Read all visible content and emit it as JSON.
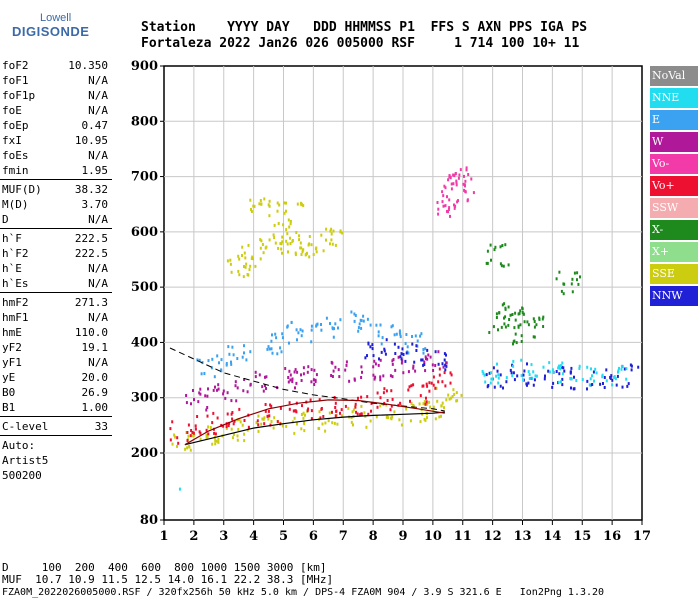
{
  "logo": {
    "brand": "Lowell",
    "product": "DIGISONDE"
  },
  "header": {
    "line1": "Station    YYYY DAY   DDD HHMMSS P1  FFS S AXN PPS IGA PS",
    "line2": "Fortaleza 2022 Jan26 026 005000 RSF     1 714 100 10+ 11"
  },
  "params": [
    [
      {
        "label": "foF2",
        "value": "10.350"
      },
      {
        "label": "foF1",
        "value": "N/A"
      },
      {
        "label": "foF1p",
        "value": "N/A"
      },
      {
        "label": "foE",
        "value": "N/A"
      },
      {
        "label": "foEp",
        "value": "0.47"
      },
      {
        "label": "fxI",
        "value": "10.95"
      },
      {
        "label": "foEs",
        "value": "N/A"
      },
      {
        "label": "fmin",
        "value": "1.95"
      }
    ],
    [
      {
        "label": "MUF(D)",
        "value": "38.32"
      },
      {
        "label": "M(D)",
        "value": "3.70"
      },
      {
        "label": "D",
        "value": "N/A"
      }
    ],
    [
      {
        "label": "h`F",
        "value": "222.5"
      },
      {
        "label": "h`F2",
        "value": "222.5"
      },
      {
        "label": "h`E",
        "value": "N/A"
      },
      {
        "label": "h`Es",
        "value": "N/A"
      }
    ],
    [
      {
        "label": "hmF2",
        "value": "271.3"
      },
      {
        "label": "hmF1",
        "value": "N/A"
      },
      {
        "label": "hmE",
        "value": "110.0"
      },
      {
        "label": "yF2",
        "value": "19.1"
      },
      {
        "label": "yF1",
        "value": "N/A"
      },
      {
        "label": "yE",
        "value": "20.0"
      },
      {
        "label": "B0",
        "value": "26.9"
      },
      {
        "label": "B1",
        "value": "1.00"
      }
    ],
    [
      {
        "label": "C-level",
        "value": "33"
      }
    ]
  ],
  "autoscaling": {
    "line1": "Auto:",
    "line2": "Artist5",
    "line3": "500200"
  },
  "legend": [
    {
      "label": "NoVal",
      "color": "#8c8c8c"
    },
    {
      "label": "NNE",
      "color": "#22ddf0"
    },
    {
      "label": "E",
      "color": "#3aa2f0"
    },
    {
      "label": "W",
      "color": "#b0189a"
    },
    {
      "label": "Vo-",
      "color": "#f23aa8"
    },
    {
      "label": "Vo+",
      "color": "#ee1030"
    },
    {
      "label": "SSW",
      "color": "#f4acb0"
    },
    {
      "label": "X-",
      "color": "#1e8a1e"
    },
    {
      "label": "X+",
      "color": "#8ede8e"
    },
    {
      "label": "SSE",
      "color": "#cccc10"
    },
    {
      "label": "NNW",
      "color": "#2020d6"
    }
  ],
  "chart_data": {
    "type": "scatter",
    "title": "",
    "xlabel": "",
    "ylabel": "",
    "xlim": [
      1,
      17
    ],
    "ylim": [
      80,
      900
    ],
    "x_ticks": [
      1,
      2,
      3,
      4,
      5,
      6,
      7,
      8,
      9,
      10,
      11,
      12,
      13,
      14,
      15,
      16,
      17
    ],
    "y_ticks": [
      80,
      200,
      300,
      400,
      500,
      600,
      700,
      800,
      900
    ],
    "grid": true,
    "bands": [
      {
        "name": "SSE",
        "color": "#cccc10",
        "points": [
          [
            1.6,
            220
          ],
          [
            2.5,
            235
          ],
          [
            3.5,
            245
          ],
          [
            4.5,
            252
          ],
          [
            5.5,
            258
          ],
          [
            6.5,
            262
          ],
          [
            7.5,
            268
          ],
          [
            8.5,
            272
          ],
          [
            9.5,
            276
          ],
          [
            10,
            280
          ],
          [
            10.5,
            300
          ]
        ]
      },
      {
        "name": "Vo+",
        "color": "#ee1030",
        "points": [
          [
            1.6,
            240
          ],
          [
            2.5,
            255
          ],
          [
            3.5,
            265
          ],
          [
            4.5,
            272
          ],
          [
            5.5,
            280
          ],
          [
            6.5,
            286
          ],
          [
            7.5,
            292
          ],
          [
            8.5,
            300
          ],
          [
            9.5,
            310
          ],
          [
            10.2,
            335
          ]
        ]
      },
      {
        "name": "W",
        "color": "#b0189a",
        "points": [
          [
            2,
            300
          ],
          [
            3,
            315
          ],
          [
            4,
            330
          ],
          [
            5,
            340
          ],
          [
            6,
            345
          ],
          [
            7,
            350
          ],
          [
            8,
            355
          ],
          [
            9,
            360
          ],
          [
            10,
            370
          ]
        ]
      },
      {
        "name": "E",
        "color": "#3aa2f0",
        "points": [
          [
            2.5,
            360
          ],
          [
            3.5,
            380
          ],
          [
            4.5,
            400
          ],
          [
            5.5,
            420
          ],
          [
            6.5,
            430
          ],
          [
            7.5,
            440
          ],
          [
            8.5,
            420
          ],
          [
            9.5,
            400
          ]
        ]
      },
      {
        "name": "NNW",
        "color": "#2020d6",
        "points": [
          [
            8,
            390
          ],
          [
            9,
            385
          ],
          [
            10,
            370
          ],
          [
            12.2,
            340
          ],
          [
            13,
            345
          ],
          [
            14,
            340
          ],
          [
            15,
            338
          ],
          [
            16,
            340
          ],
          [
            16.8,
            342
          ]
        ]
      },
      {
        "name": "NNE",
        "color": "#22ddf0",
        "points": [
          [
            12,
            345
          ],
          [
            13,
            355
          ],
          [
            14,
            350
          ],
          [
            15,
            345
          ],
          [
            16,
            343
          ]
        ]
      },
      {
        "name": "X-",
        "color": "#1e8a1e",
        "points": [
          [
            12.3,
            440
          ],
          [
            12.6,
            460
          ],
          [
            13,
            420
          ],
          [
            13.3,
            450
          ],
          [
            12.1,
            560
          ],
          [
            14.5,
            510
          ]
        ]
      },
      {
        "name": "SSE-scatter",
        "color": "#cccc10",
        "points": [
          [
            3.5,
            540
          ],
          [
            4,
            560
          ],
          [
            4.5,
            580
          ],
          [
            5,
            600
          ],
          [
            5.5,
            580
          ],
          [
            6,
            570
          ],
          [
            6.5,
            590
          ],
          [
            4.2,
            650
          ],
          [
            5.2,
            640
          ]
        ]
      },
      {
        "name": "Vo-",
        "color": "#f23aa8",
        "points": [
          [
            10.5,
            650
          ],
          [
            10.7,
            670
          ],
          [
            10.9,
            690
          ],
          [
            10.8,
            700
          ]
        ]
      }
    ],
    "trace_lower": {
      "points": [
        [
          1.7,
          215
        ],
        [
          3,
          232
        ],
        [
          4,
          245
        ],
        [
          5,
          253
        ],
        [
          6,
          260
        ],
        [
          7,
          265
        ],
        [
          8,
          268
        ],
        [
          9,
          270
        ],
        [
          10,
          272
        ],
        [
          10.4,
          274
        ]
      ]
    },
    "trace_upper": {
      "points": [
        [
          1.2,
          390
        ],
        [
          2,
          370
        ],
        [
          3,
          345
        ],
        [
          4,
          330
        ],
        [
          5,
          315
        ],
        [
          6,
          305
        ],
        [
          7,
          298
        ],
        [
          8,
          290
        ],
        [
          9,
          285
        ],
        [
          10,
          280
        ],
        [
          10.4,
          276
        ]
      ]
    },
    "profile": {
      "points": [
        [
          1.7,
          215
        ],
        [
          2.5,
          240
        ],
        [
          3.5,
          262
        ],
        [
          4.5,
          280
        ],
        [
          5.5,
          290
        ],
        [
          6.5,
          296
        ],
        [
          7.5,
          295
        ],
        [
          8.5,
          288
        ],
        [
          9.5,
          280
        ],
        [
          10.4,
          272
        ]
      ]
    },
    "outlier": {
      "points": [
        [
          1.5,
          138
        ]
      ]
    }
  },
  "footer": {
    "d_row": "D     100  200  400  600  800 1000 1500 3000 [km]",
    "muf_row": "MUF  10.7 10.9 11.5 12.5 14.0 16.1 22.2 38.3 [MHz]",
    "info": "FZA0M_2022026005000.RSF / 320fx256h 50 kHz 5.0 km / DPS-4 FZA0M 904 / 3.9 S 321.6 E   Ion2Png 1.3.20"
  }
}
